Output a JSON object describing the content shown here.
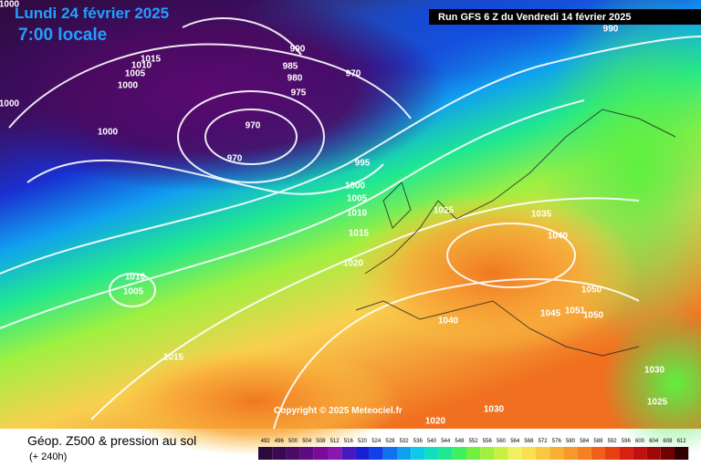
{
  "header": {
    "date": "Lundi 24 février 2025",
    "time": "7:00 locale",
    "run": "Run GFS 6 Z du Vendredi 14 février 2025"
  },
  "isobar_labels": [
    "1000",
    "1015",
    "1010",
    "1005",
    "1000",
    "990",
    "985",
    "980",
    "975",
    "970",
    "970",
    "970",
    "1000",
    "1000",
    "995",
    "1000",
    "1005",
    "1010",
    "1015",
    "1020",
    "1025",
    "1035",
    "1040",
    "1010",
    "1005",
    "1040",
    "1045",
    "1050",
    "1051",
    "1050",
    "1015",
    "1030",
    "1025",
    "1030",
    "1020",
    "990"
  ],
  "copyright": "Copyright © 2025 Meteociel.fr",
  "footer": {
    "title": "Géop. Z500 & pression au sol",
    "lead": "(+ 240h)"
  },
  "colorbar": {
    "values": [
      492,
      496,
      500,
      504,
      508,
      512,
      516,
      520,
      524,
      528,
      532,
      536,
      540,
      544,
      548,
      552,
      556,
      560,
      564,
      568,
      572,
      576,
      580,
      584,
      588,
      592,
      596,
      600,
      604,
      608,
      612
    ],
    "colors": [
      "#2a0a3a",
      "#3a0a50",
      "#4b0a66",
      "#5e0a80",
      "#7a0a9a",
      "#8a18b0",
      "#4a18c0",
      "#1a20d0",
      "#1040e8",
      "#1070f0",
      "#10a0f0",
      "#10c8e8",
      "#10e0c0",
      "#20e890",
      "#40f060",
      "#70f040",
      "#a0f040",
      "#c8f040",
      "#f0f060",
      "#f8e050",
      "#f8c840",
      "#f8b030",
      "#f89828",
      "#f88020",
      "#f06018",
      "#e84010",
      "#d82010",
      "#c01010",
      "#a00808",
      "#700404",
      "#300000"
    ]
  }
}
